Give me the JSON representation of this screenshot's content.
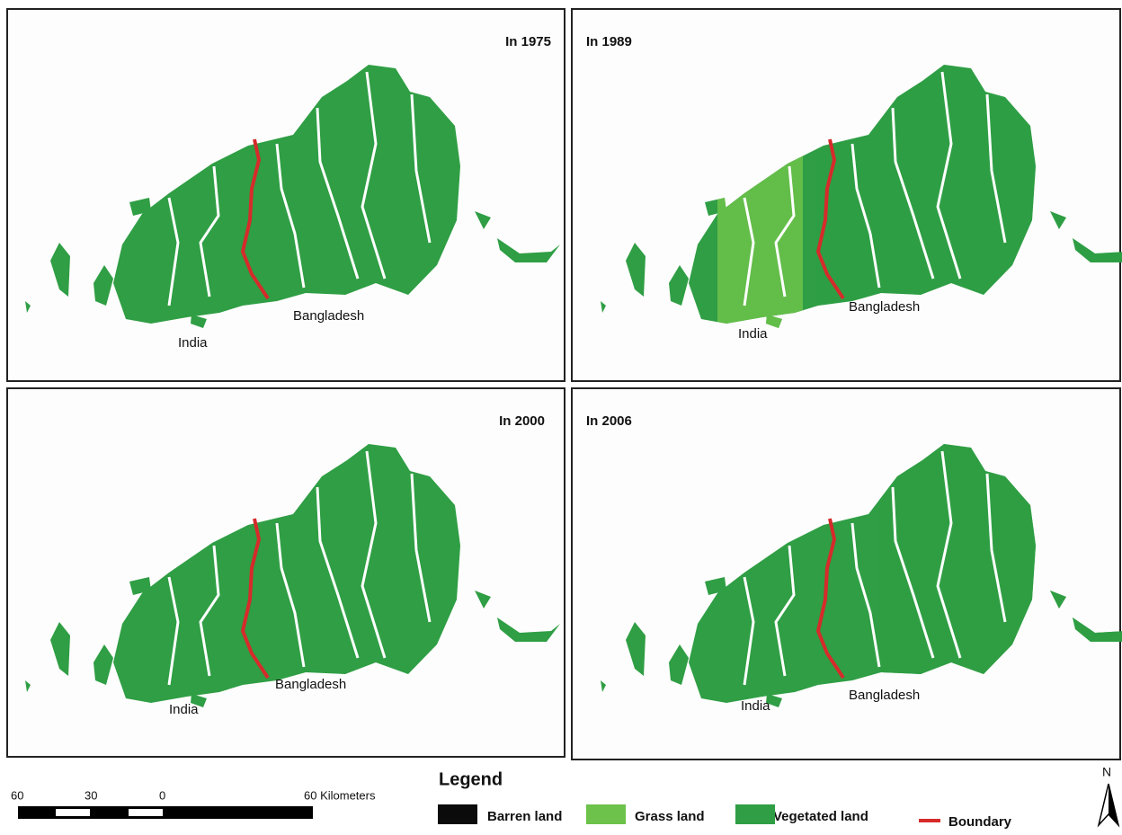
{
  "panels": [
    {
      "title": "In 1975",
      "labels": [
        "India",
        "Bangladesh"
      ]
    },
    {
      "title": "In 1989",
      "labels": [
        "India",
        "Bangladesh"
      ]
    },
    {
      "title": "In 2000",
      "labels": [
        "India",
        "Bangladesh"
      ]
    },
    {
      "title": "In 2006",
      "labels": [
        "India",
        "Bangladesh"
      ]
    }
  ],
  "legend": {
    "title": "Legend",
    "items": [
      {
        "label": "Barren land",
        "color": "#0b0b0b"
      },
      {
        "label": "Grass land",
        "color": "#6cc24a"
      },
      {
        "label": "Vegetated land",
        "color": "#2f9e44"
      },
      {
        "label": "Boundary",
        "color": "#d62b2b"
      }
    ]
  },
  "scale_bar": {
    "labels": [
      "60",
      "30",
      "0",
      "60 Kilometers"
    ]
  },
  "north_arrow": "N"
}
